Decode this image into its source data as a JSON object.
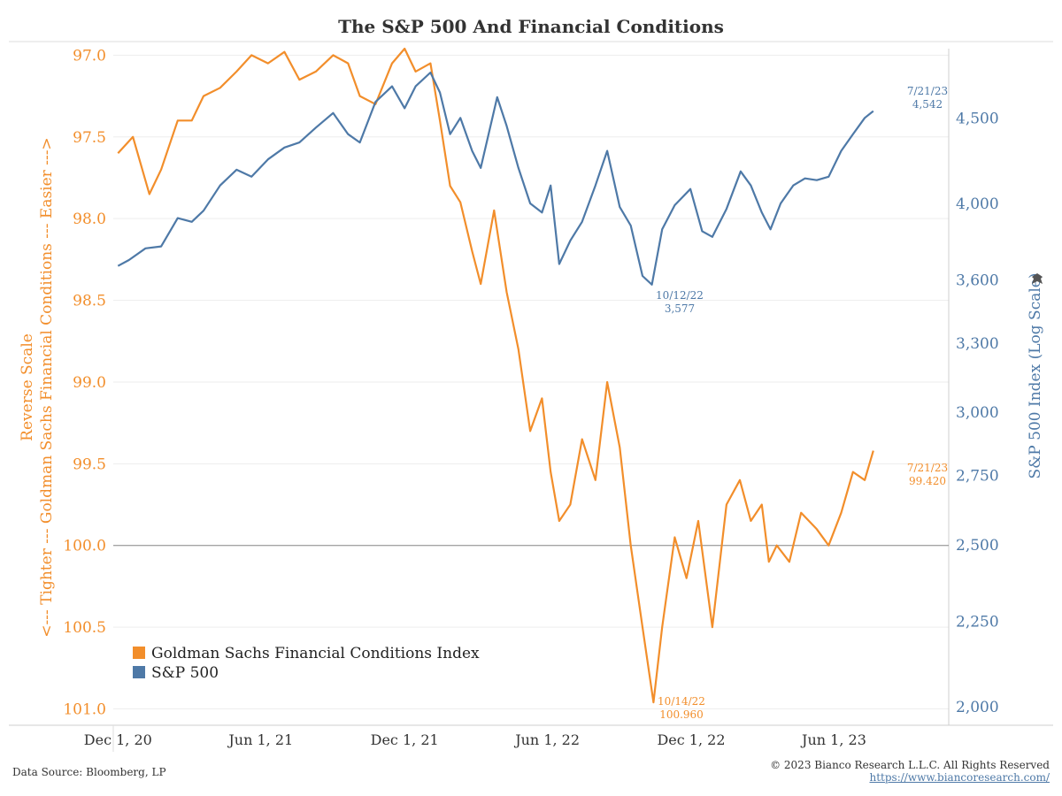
{
  "chart_data": {
    "type": "line",
    "title": "The S&P 500 And Financial Conditions",
    "x_axis": {
      "ticks": [
        "Dec 1, 20",
        "Jun 1, 21",
        "Dec 1, 21",
        "Jun 1, 22",
        "Dec 1, 22",
        "Jun 1, 23"
      ]
    },
    "left_axis": {
      "label_lines": [
        "<--- Tighter --- Goldman Sachs Financial Conditions --- Easier --->",
        "Reverse Scale"
      ],
      "ticks": [
        "97.0",
        "97.5",
        "98.0",
        "98.5",
        "99.0",
        "99.5",
        "100.0",
        "100.5",
        "101.0"
      ],
      "range": [
        96.96,
        101.1
      ],
      "reversed": true,
      "color": "#f28e2b"
    },
    "right_axis": {
      "label": "S&P 500 Index (Log Scale)",
      "ticks": [
        "2,000",
        "2,250",
        "2,500",
        "2,750",
        "3,000",
        "3,300",
        "3,600",
        "4,000",
        "4,500"
      ],
      "range": [
        1950,
        4950
      ],
      "scale": "log",
      "color": "#4e79a7"
    },
    "series": [
      {
        "name": "Goldman Sachs Financial Conditions Index",
        "axis": "left",
        "color": "#f28e2b",
        "x": [
          "2020-12-01",
          "2020-12-20",
          "2021-01-10",
          "2021-01-25",
          "2021-02-15",
          "2021-03-05",
          "2021-03-20",
          "2021-04-10",
          "2021-05-01",
          "2021-05-20",
          "2021-06-10",
          "2021-07-01",
          "2021-07-20",
          "2021-08-10",
          "2021-09-01",
          "2021-09-20",
          "2021-10-05",
          "2021-10-25",
          "2021-11-15",
          "2021-12-01",
          "2021-12-15",
          "2022-01-03",
          "2022-01-15",
          "2022-01-28",
          "2022-02-10",
          "2022-02-25",
          "2022-03-08",
          "2022-03-25",
          "2022-04-10",
          "2022-04-25",
          "2022-05-10",
          "2022-05-25",
          "2022-06-05",
          "2022-06-16",
          "2022-06-30",
          "2022-07-15",
          "2022-08-01",
          "2022-08-16",
          "2022-09-01",
          "2022-09-15",
          "2022-09-30",
          "2022-10-14",
          "2022-10-25",
          "2022-11-10",
          "2022-11-25",
          "2022-12-10",
          "2022-12-28",
          "2023-01-15",
          "2023-02-01",
          "2023-02-15",
          "2023-03-01",
          "2023-03-10",
          "2023-03-20",
          "2023-04-05",
          "2023-04-20",
          "2023-05-10",
          "2023-05-25",
          "2023-06-10",
          "2023-06-25",
          "2023-07-10",
          "2023-07-21"
        ],
        "values": [
          97.6,
          97.5,
          97.85,
          97.7,
          97.4,
          97.4,
          97.25,
          97.2,
          97.1,
          97.0,
          97.05,
          96.98,
          97.15,
          97.1,
          97.0,
          97.05,
          97.25,
          97.3,
          97.05,
          96.96,
          97.1,
          97.05,
          97.4,
          97.8,
          97.9,
          98.2,
          98.4,
          97.95,
          98.45,
          98.8,
          99.3,
          99.1,
          99.55,
          99.85,
          99.75,
          99.35,
          99.6,
          99.0,
          99.4,
          100.0,
          100.5,
          100.96,
          100.5,
          99.95,
          100.2,
          99.85,
          100.5,
          99.75,
          99.6,
          99.85,
          99.75,
          100.1,
          100.0,
          100.1,
          99.8,
          99.9,
          100.0,
          99.8,
          99.55,
          99.6,
          99.42
        ]
      },
      {
        "name": "S&P 500",
        "axis": "right",
        "color": "#4e79a7",
        "x": [
          "2020-12-01",
          "2020-12-15",
          "2021-01-05",
          "2021-01-25",
          "2021-02-15",
          "2021-03-05",
          "2021-03-20",
          "2021-04-10",
          "2021-05-01",
          "2021-05-20",
          "2021-06-10",
          "2021-07-01",
          "2021-07-20",
          "2021-08-10",
          "2021-09-01",
          "2021-09-20",
          "2021-10-05",
          "2021-10-25",
          "2021-11-15",
          "2021-12-01",
          "2021-12-15",
          "2022-01-03",
          "2022-01-15",
          "2022-01-28",
          "2022-02-10",
          "2022-02-25",
          "2022-03-08",
          "2022-03-29",
          "2022-04-10",
          "2022-04-25",
          "2022-05-10",
          "2022-05-25",
          "2022-06-05",
          "2022-06-16",
          "2022-06-30",
          "2022-07-15",
          "2022-08-01",
          "2022-08-16",
          "2022-09-01",
          "2022-09-15",
          "2022-09-30",
          "2022-10-12",
          "2022-10-25",
          "2022-11-10",
          "2022-11-30",
          "2022-12-15",
          "2022-12-28",
          "2023-01-15",
          "2023-02-02",
          "2023-02-15",
          "2023-03-01",
          "2023-03-12",
          "2023-03-25",
          "2023-04-10",
          "2023-04-25",
          "2023-05-10",
          "2023-05-25",
          "2023-06-10",
          "2023-06-25",
          "2023-07-10",
          "2023-07-21"
        ],
        "values": [
          3670,
          3700,
          3760,
          3770,
          3920,
          3900,
          3960,
          4100,
          4190,
          4150,
          4250,
          4320,
          4350,
          4440,
          4530,
          4400,
          4350,
          4600,
          4700,
          4560,
          4700,
          4790,
          4660,
          4400,
          4500,
          4300,
          4200,
          4630,
          4450,
          4200,
          4000,
          3950,
          4100,
          3680,
          3800,
          3900,
          4100,
          4300,
          3980,
          3880,
          3620,
          3577,
          3860,
          3990,
          4080,
          3850,
          3820,
          3970,
          4180,
          4100,
          3950,
          3860,
          4000,
          4100,
          4140,
          4130,
          4150,
          4300,
          4400,
          4500,
          4542
        ]
      }
    ],
    "annotations": [
      {
        "text_lines": [
          "7/21/23",
          "4,542"
        ],
        "series": "S&P 500"
      },
      {
        "text_lines": [
          "10/12/22",
          "3,577"
        ],
        "series": "S&P 500"
      },
      {
        "text_lines": [
          "7/21/23",
          "99.420"
        ],
        "series": "Goldman Sachs Financial Conditions Index"
      },
      {
        "text_lines": [
          "10/14/22",
          "100.960"
        ],
        "series": "Goldman Sachs Financial Conditions Index"
      }
    ],
    "reference_line": {
      "axis": "left",
      "value": 100.0
    },
    "grid": true,
    "legend": "bottom-left"
  },
  "footer": {
    "source": "Data Source: Bloomberg, LP",
    "copyright": "© 2023 Bianco Research L.L.C. All Rights Reserved",
    "url": "https://www.biancoresearch.com/"
  }
}
